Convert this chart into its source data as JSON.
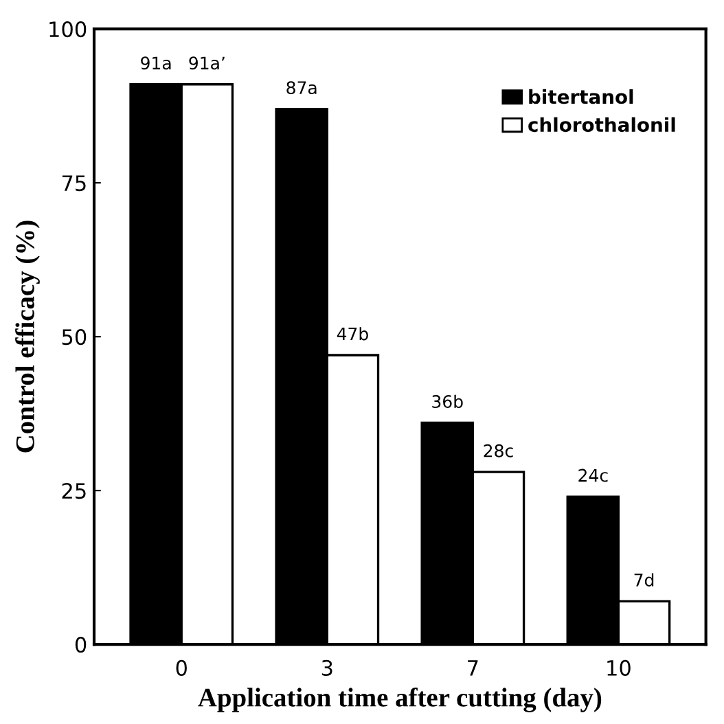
{
  "chart_data": {
    "type": "bar",
    "xlabel": "Application time after cutting (day)",
    "ylabel": "Control efficacy (%)",
    "categories": [
      "0",
      "3",
      "7",
      "10"
    ],
    "series": [
      {
        "name": "bitertanol",
        "color": "#000000",
        "values": [
          91,
          87,
          36,
          24
        ],
        "value_labels": [
          "91a",
          "87a",
          "36b",
          "24c"
        ]
      },
      {
        "name": "chlorothalonil",
        "color": "#ffffff",
        "values": [
          91,
          47,
          28,
          7
        ],
        "value_labels": [
          "91a’",
          "47b",
          "28c",
          "7d"
        ]
      }
    ],
    "ylim": [
      0,
      100
    ],
    "yticks": [
      0,
      25,
      50,
      75,
      100
    ],
    "legend": "top right",
    "grid": false
  }
}
